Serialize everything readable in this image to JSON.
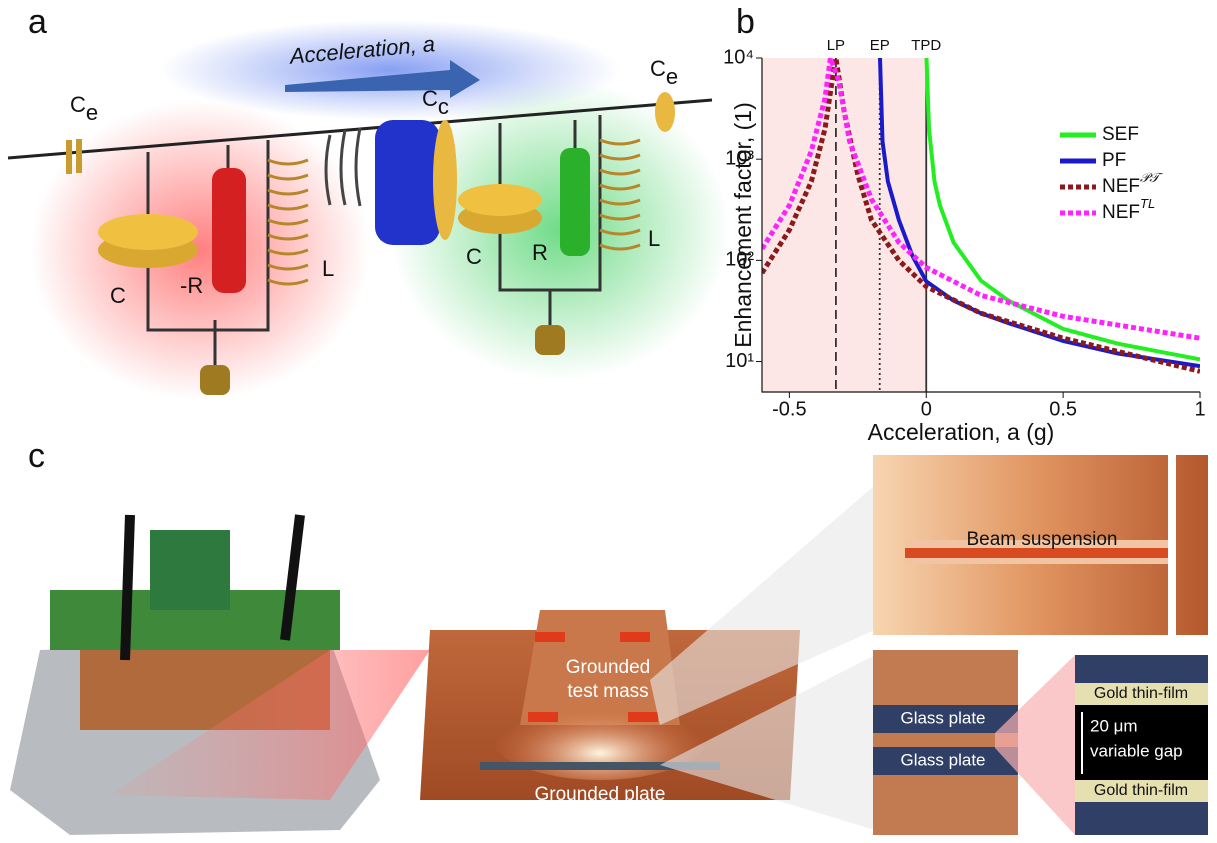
{
  "panels": {
    "a": "a",
    "b": "b",
    "c": "c"
  },
  "circuit": {
    "arrow_label": "Acceleration, a",
    "ce_left": {
      "text": "C",
      "sub": "e"
    },
    "ce_right": {
      "text": "C",
      "sub": "e"
    },
    "cc": {
      "text": "C",
      "sub": "c"
    },
    "left_c": "C",
    "left_r": "-R",
    "left_l": "L",
    "right_c": "C",
    "right_r": "R",
    "right_l": "L"
  },
  "device": {
    "test_mass": [
      "Grounded",
      "test mass"
    ],
    "plate": "Grounded plate",
    "beam": "Beam suspension",
    "glass_top": "Glass plate",
    "glass_bottom": "Glass plate",
    "gold_top": "Gold thin-film",
    "gold_bottom": "Gold thin-film",
    "gap": [
      "20 μm",
      "variable gap"
    ]
  },
  "chart_data": {
    "type": "line",
    "xlabel": "Acceleration, a (g)",
    "ylabel": "Enhancement factor, (1)",
    "xlim": [
      -0.6,
      1
    ],
    "xticks": [
      -0.5,
      0,
      0.5,
      1
    ],
    "ylim": [
      5,
      10000
    ],
    "log_y": true,
    "yticks": [
      {
        "value": 10,
        "label": "10¹"
      },
      {
        "value": 100,
        "label": "10²"
      },
      {
        "value": 1000,
        "label": "10³"
      },
      {
        "value": 10000,
        "label": "10⁴"
      }
    ],
    "shaded_region": [
      -0.6,
      0
    ],
    "shade_color": "#fde6e6",
    "vlines": [
      {
        "label": "LP",
        "x": -0.33,
        "style": "dashed"
      },
      {
        "label": "EP",
        "x": -0.17,
        "style": "dotted"
      },
      {
        "label": "TPD",
        "x": 0,
        "style": "solid"
      }
    ],
    "legend": "upper right",
    "series": [
      {
        "name": "SEF",
        "color": "#22ee22",
        "line_style": "solid",
        "x": [
          0.001,
          0.01,
          0.03,
          0.05,
          0.1,
          0.2,
          0.3,
          0.5,
          0.7,
          1
        ],
        "values": [
          10000,
          2000,
          600,
          350,
          150,
          63,
          40,
          21,
          15,
          10.5
        ]
      },
      {
        "name": "PF",
        "color": "#1a1acc",
        "line_style": "solid",
        "x": [
          -0.169,
          -0.16,
          -0.14,
          -0.1,
          -0.05,
          0,
          0.1,
          0.2,
          0.3,
          0.5,
          0.7,
          1
        ],
        "values": [
          10000,
          1500,
          600,
          250,
          110,
          62,
          40,
          30,
          24,
          16,
          12,
          9
        ]
      },
      {
        "name": "NEF",
        "superscript": "𝒫𝒯",
        "color": "#8b1a1a",
        "line_style": "dotted",
        "x": [
          -0.6,
          -0.5,
          -0.42,
          -0.37,
          -0.34,
          -0.33,
          -0.3,
          -0.25,
          -0.2,
          -0.1,
          0,
          0.2,
          0.5,
          1
        ],
        "values": [
          75,
          200,
          600,
          2000,
          7000,
          10000,
          3000,
          700,
          250,
          100,
          55,
          30,
          17,
          8
        ]
      },
      {
        "name": "NEF",
        "superscript": "TL",
        "color": "#ff22ff",
        "line_style": "dotted",
        "x": [
          -0.6,
          -0.5,
          -0.42,
          -0.37,
          -0.35,
          -0.32,
          -0.28,
          -0.2,
          -0.1,
          0,
          0.2,
          0.5,
          1
        ],
        "values": [
          130,
          350,
          1200,
          4000,
          10000,
          6000,
          1500,
          400,
          150,
          85,
          45,
          28,
          17
        ]
      }
    ]
  }
}
